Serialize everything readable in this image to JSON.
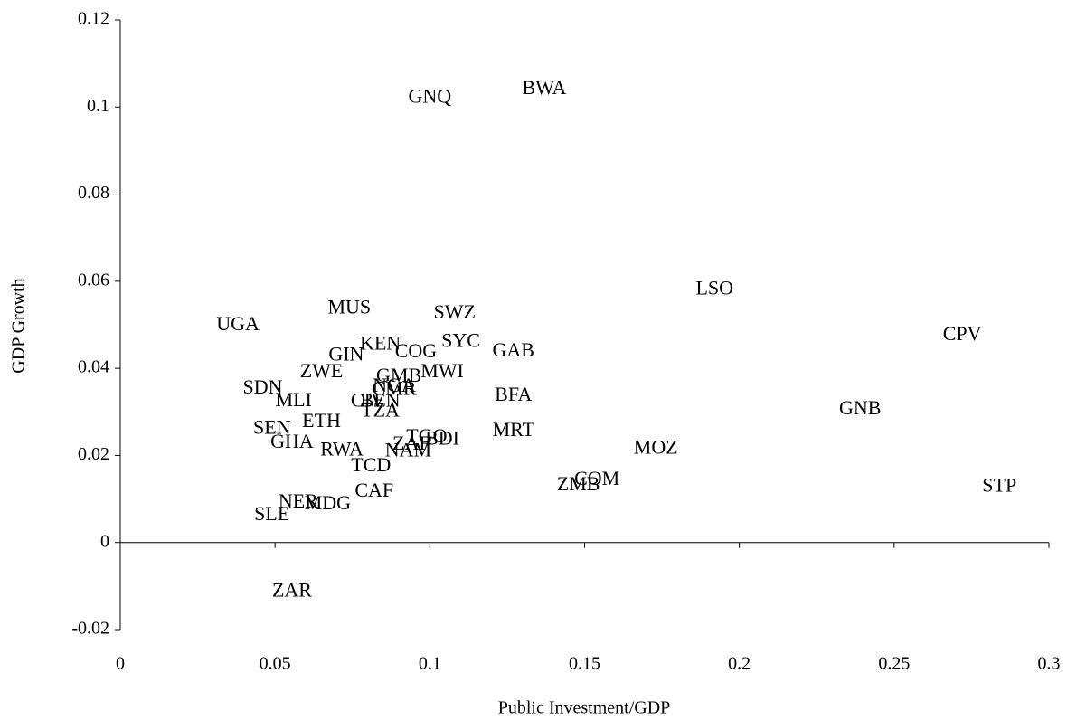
{
  "chart_data": {
    "type": "scatter",
    "x_label": "Public Investment/GDP",
    "y_label": "GDP Growth",
    "xlim": [
      0,
      0.3
    ],
    "ylim": [
      -0.02,
      0.12
    ],
    "xticks": [
      0,
      0.05,
      0.1,
      0.15,
      0.2,
      0.25,
      0.3
    ],
    "yticks": [
      -0.02,
      0,
      0.02,
      0.04,
      0.06,
      0.08,
      0.1,
      0.12
    ],
    "color": "#000000",
    "labels": [
      "GNQ",
      "BWA",
      "LSO",
      "CPV",
      "GNB",
      "STP",
      "MOZ",
      "COM",
      "ZMB",
      "MRT",
      "BFA",
      "GAB",
      "SWZ",
      "SYC",
      "MWI",
      "COG",
      "KEN",
      "GIN",
      "MUS",
      "UGA",
      "ZWE",
      "GMB",
      "NGA",
      "CMR",
      "SDN",
      "MLI",
      "CIV",
      "BEN",
      "TZA",
      "ETH",
      "SEN",
      "GHA",
      "RWA",
      "TGO",
      "BDI",
      "ZAF",
      "NAM",
      "TCD",
      "CAF",
      "NER",
      "MDG",
      "SLE",
      "ZAR"
    ],
    "x": [
      0.1,
      0.137,
      0.192,
      0.272,
      0.239,
      0.284,
      0.173,
      0.154,
      0.148,
      0.127,
      0.127,
      0.127,
      0.108,
      0.11,
      0.104,
      0.0955,
      0.084,
      0.073,
      0.074,
      0.038,
      0.065,
      0.09,
      0.0885,
      0.0885,
      0.046,
      0.056,
      0.08,
      0.084,
      0.084,
      0.065,
      0.049,
      0.0555,
      0.0716,
      0.099,
      0.104,
      0.094,
      0.093,
      0.081,
      0.082,
      0.0575,
      0.067,
      0.049,
      0.0555
    ],
    "y": [
      0.102,
      0.104,
      0.058,
      0.0475,
      0.0305,
      0.0127,
      0.0214,
      0.0143,
      0.013,
      0.0255,
      0.0336,
      0.0438,
      0.0525,
      0.046,
      0.039,
      0.0436,
      0.0453,
      0.0428,
      0.0536,
      0.0498,
      0.039,
      0.038,
      0.0357,
      0.035,
      0.0353,
      0.0324,
      0.0322,
      0.0322,
      0.03,
      0.0276,
      0.026,
      0.0228,
      0.021,
      0.024,
      0.0235,
      0.0224,
      0.0208,
      0.0174,
      0.0116,
      0.0091,
      0.0087,
      0.0062,
      -0.0114
    ]
  }
}
